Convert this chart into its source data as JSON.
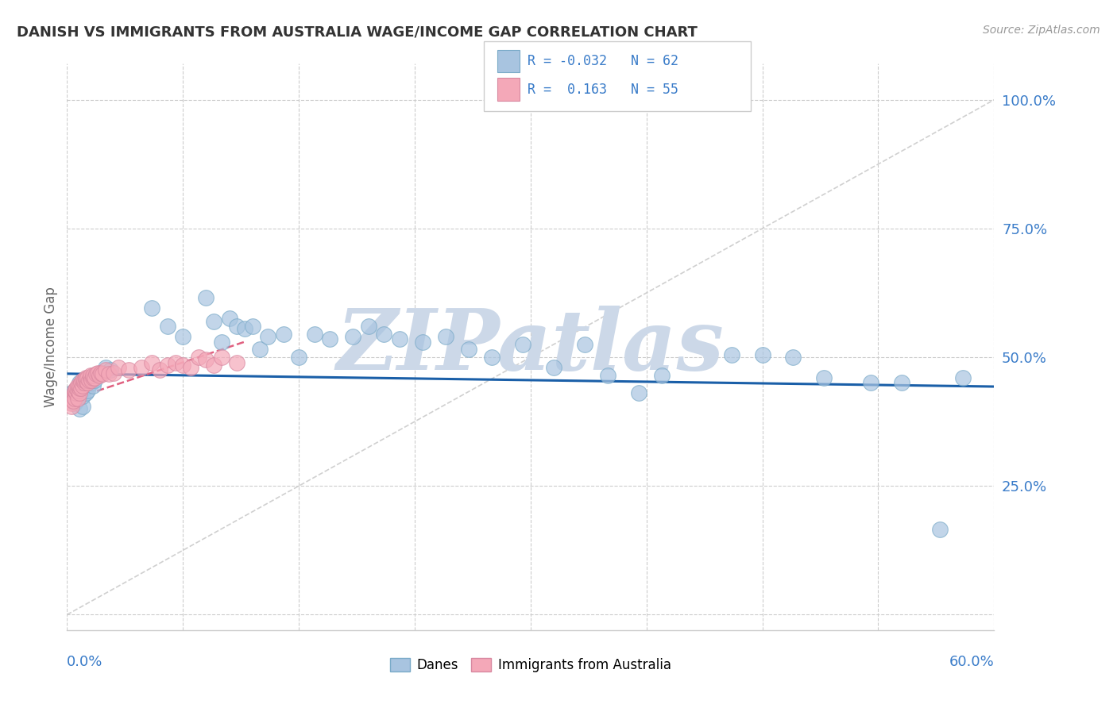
{
  "title": "DANISH VS IMMIGRANTS FROM AUSTRALIA WAGE/INCOME GAP CORRELATION CHART",
  "source": "Source: ZipAtlas.com",
  "ylabel": "Wage/Income Gap",
  "xmin": 0.0,
  "xmax": 0.6,
  "ymin": -0.03,
  "ymax": 1.07,
  "danes_color": "#a8c4e0",
  "aus_color": "#f4a8b8",
  "danes_line_color": "#1a5fa8",
  "aus_line_color": "#e06080",
  "watermark_color": "#ccd8e8",
  "watermark_text": "ZIPatlas",
  "legend_R_color": "#3a7cc9",
  "ytick_vals": [
    0.25,
    0.5,
    0.75,
    1.0
  ],
  "ytick_labels": [
    "25.0%",
    "50.0%",
    "75.0%",
    "100.0%"
  ],
  "xtick_left": "0.0%",
  "xtick_right": "60.0%",
  "danes_x": [
    0.003,
    0.004,
    0.005,
    0.005,
    0.006,
    0.007,
    0.007,
    0.008,
    0.008,
    0.009,
    0.01,
    0.01,
    0.011,
    0.012,
    0.013,
    0.014,
    0.015,
    0.016,
    0.017,
    0.018,
    0.02,
    0.022,
    0.025,
    0.028,
    0.055,
    0.065,
    0.075,
    0.09,
    0.095,
    0.1,
    0.105,
    0.11,
    0.115,
    0.12,
    0.125,
    0.13,
    0.14,
    0.15,
    0.16,
    0.17,
    0.185,
    0.195,
    0.205,
    0.215,
    0.23,
    0.245,
    0.26,
    0.275,
    0.295,
    0.315,
    0.335,
    0.35,
    0.37,
    0.385,
    0.43,
    0.45,
    0.47,
    0.49,
    0.52,
    0.54,
    0.565,
    0.58
  ],
  "danes_y": [
    0.43,
    0.42,
    0.435,
    0.41,
    0.415,
    0.44,
    0.425,
    0.4,
    0.45,
    0.43,
    0.405,
    0.425,
    0.44,
    0.43,
    0.435,
    0.455,
    0.46,
    0.45,
    0.445,
    0.455,
    0.465,
    0.47,
    0.48,
    0.475,
    0.595,
    0.56,
    0.54,
    0.615,
    0.57,
    0.53,
    0.575,
    0.56,
    0.555,
    0.56,
    0.515,
    0.54,
    0.545,
    0.5,
    0.545,
    0.535,
    0.54,
    0.56,
    0.545,
    0.535,
    0.53,
    0.54,
    0.515,
    0.5,
    0.525,
    0.48,
    0.525,
    0.465,
    0.43,
    0.465,
    0.505,
    0.505,
    0.5,
    0.46,
    0.45,
    0.45,
    0.165,
    0.46
  ],
  "aus_x": [
    0.002,
    0.003,
    0.003,
    0.004,
    0.004,
    0.005,
    0.005,
    0.005,
    0.006,
    0.006,
    0.007,
    0.007,
    0.007,
    0.008,
    0.008,
    0.008,
    0.009,
    0.009,
    0.01,
    0.01,
    0.011,
    0.011,
    0.012,
    0.012,
    0.013,
    0.013,
    0.014,
    0.015,
    0.015,
    0.016,
    0.017,
    0.017,
    0.018,
    0.019,
    0.02,
    0.021,
    0.022,
    0.023,
    0.025,
    0.027,
    0.03,
    0.033,
    0.04,
    0.048,
    0.055,
    0.06,
    0.065,
    0.07,
    0.075,
    0.08,
    0.085,
    0.09,
    0.095,
    0.1,
    0.11
  ],
  "aus_y": [
    0.42,
    0.41,
    0.405,
    0.425,
    0.415,
    0.43,
    0.42,
    0.435,
    0.43,
    0.44,
    0.42,
    0.435,
    0.445,
    0.43,
    0.44,
    0.445,
    0.44,
    0.45,
    0.445,
    0.455,
    0.45,
    0.455,
    0.455,
    0.46,
    0.45,
    0.46,
    0.455,
    0.46,
    0.465,
    0.455,
    0.46,
    0.465,
    0.46,
    0.468,
    0.47,
    0.465,
    0.47,
    0.468,
    0.475,
    0.468,
    0.47,
    0.48,
    0.475,
    0.48,
    0.49,
    0.475,
    0.485,
    0.49,
    0.485,
    0.48,
    0.5,
    0.495,
    0.485,
    0.5,
    0.49
  ],
  "danes_trend_x": [
    0.0,
    0.6
  ],
  "danes_trend_y": [
    0.468,
    0.443
  ],
  "aus_trend_x": [
    0.0,
    0.115
  ],
  "aus_trend_y": [
    0.415,
    0.53
  ]
}
